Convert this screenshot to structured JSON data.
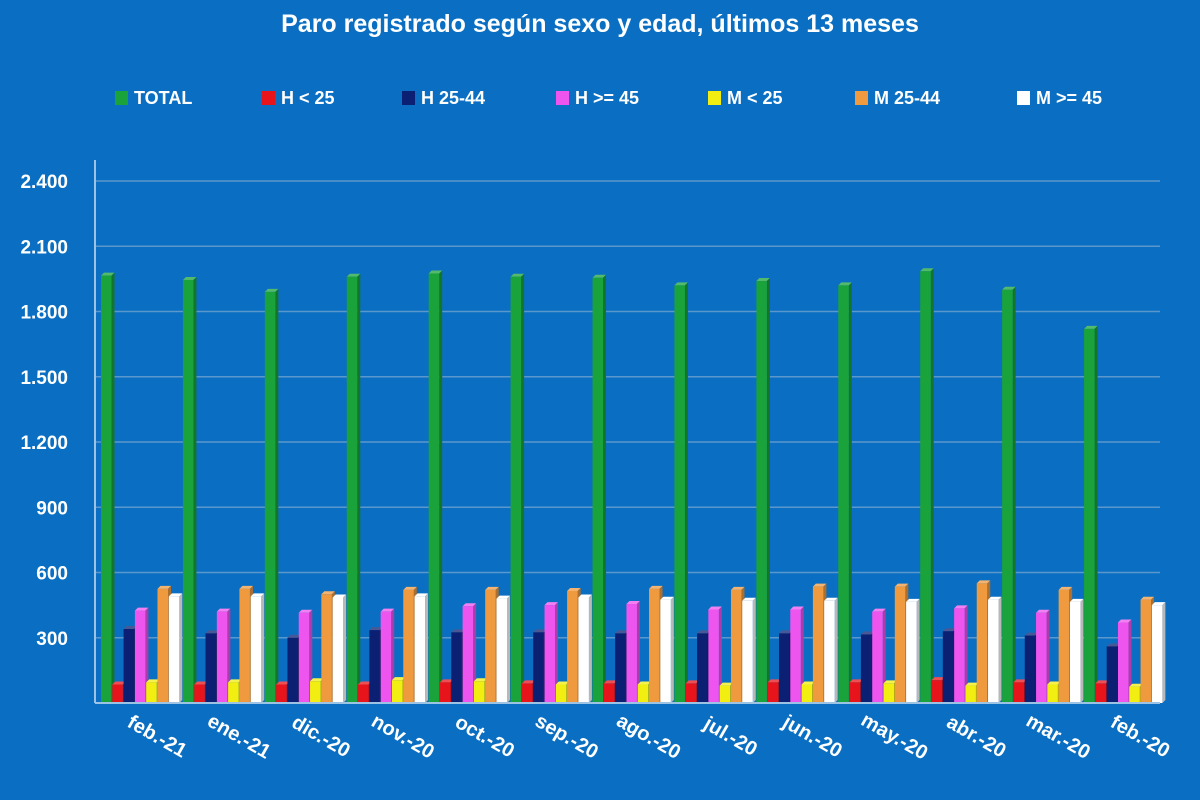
{
  "chart_data": {
    "type": "bar",
    "title": "Paro registrado según sexo y edad, últimos 13 meses",
    "xlabel": "",
    "ylabel": "",
    "ylim": [
      0,
      2400
    ],
    "yticks": [
      "300",
      "600",
      "900",
      "1.200",
      "1.500",
      "1.800",
      "2.100",
      "2.400"
    ],
    "grid": true,
    "legend_position": "top",
    "categories": [
      "feb.-21",
      "ene.-21",
      "dic.-20",
      "nov.-20",
      "oct.-20",
      "sep.-20",
      "ago.-20",
      "jul.-20",
      "jun.-20",
      "may.-20",
      "abr.-20",
      "mar.-20",
      "feb.-20"
    ],
    "series": [
      {
        "name": "TOTAL",
        "color": "#1aa33a",
        "values": [
          1965,
          1945,
          1890,
          1960,
          1975,
          1960,
          1955,
          1920,
          1940,
          1920,
          1985,
          1900,
          1720
        ]
      },
      {
        "name": "H < 25",
        "color": "#e8141b",
        "values": [
          85,
          85,
          85,
          85,
          95,
          90,
          90,
          90,
          95,
          95,
          105,
          95,
          90
        ]
      },
      {
        "name": "H 25-44",
        "color": "#0b1f73",
        "values": [
          340,
          320,
          300,
          335,
          325,
          325,
          320,
          320,
          320,
          315,
          330,
          310,
          260
        ]
      },
      {
        "name": "H >= 45",
        "color": "#ee55ee",
        "values": [
          425,
          420,
          415,
          420,
          445,
          450,
          455,
          430,
          430,
          420,
          435,
          415,
          370
        ]
      },
      {
        "name": "M < 25",
        "color": "#f2ee12",
        "values": [
          95,
          95,
          100,
          105,
          100,
          85,
          85,
          80,
          85,
          90,
          80,
          85,
          75
        ]
      },
      {
        "name": "M 25-44",
        "color": "#f09a40",
        "values": [
          525,
          525,
          500,
          520,
          520,
          515,
          525,
          520,
          535,
          535,
          550,
          520,
          475
        ]
      },
      {
        "name": "M >= 45",
        "color": "#ffffff",
        "values": [
          490,
          490,
          485,
          490,
          480,
          485,
          475,
          470,
          470,
          465,
          475,
          465,
          450
        ]
      }
    ]
  },
  "colors": {
    "background": "#0a6fc2",
    "gridline": "#5a97cc",
    "axis": "#9cc3e4"
  }
}
